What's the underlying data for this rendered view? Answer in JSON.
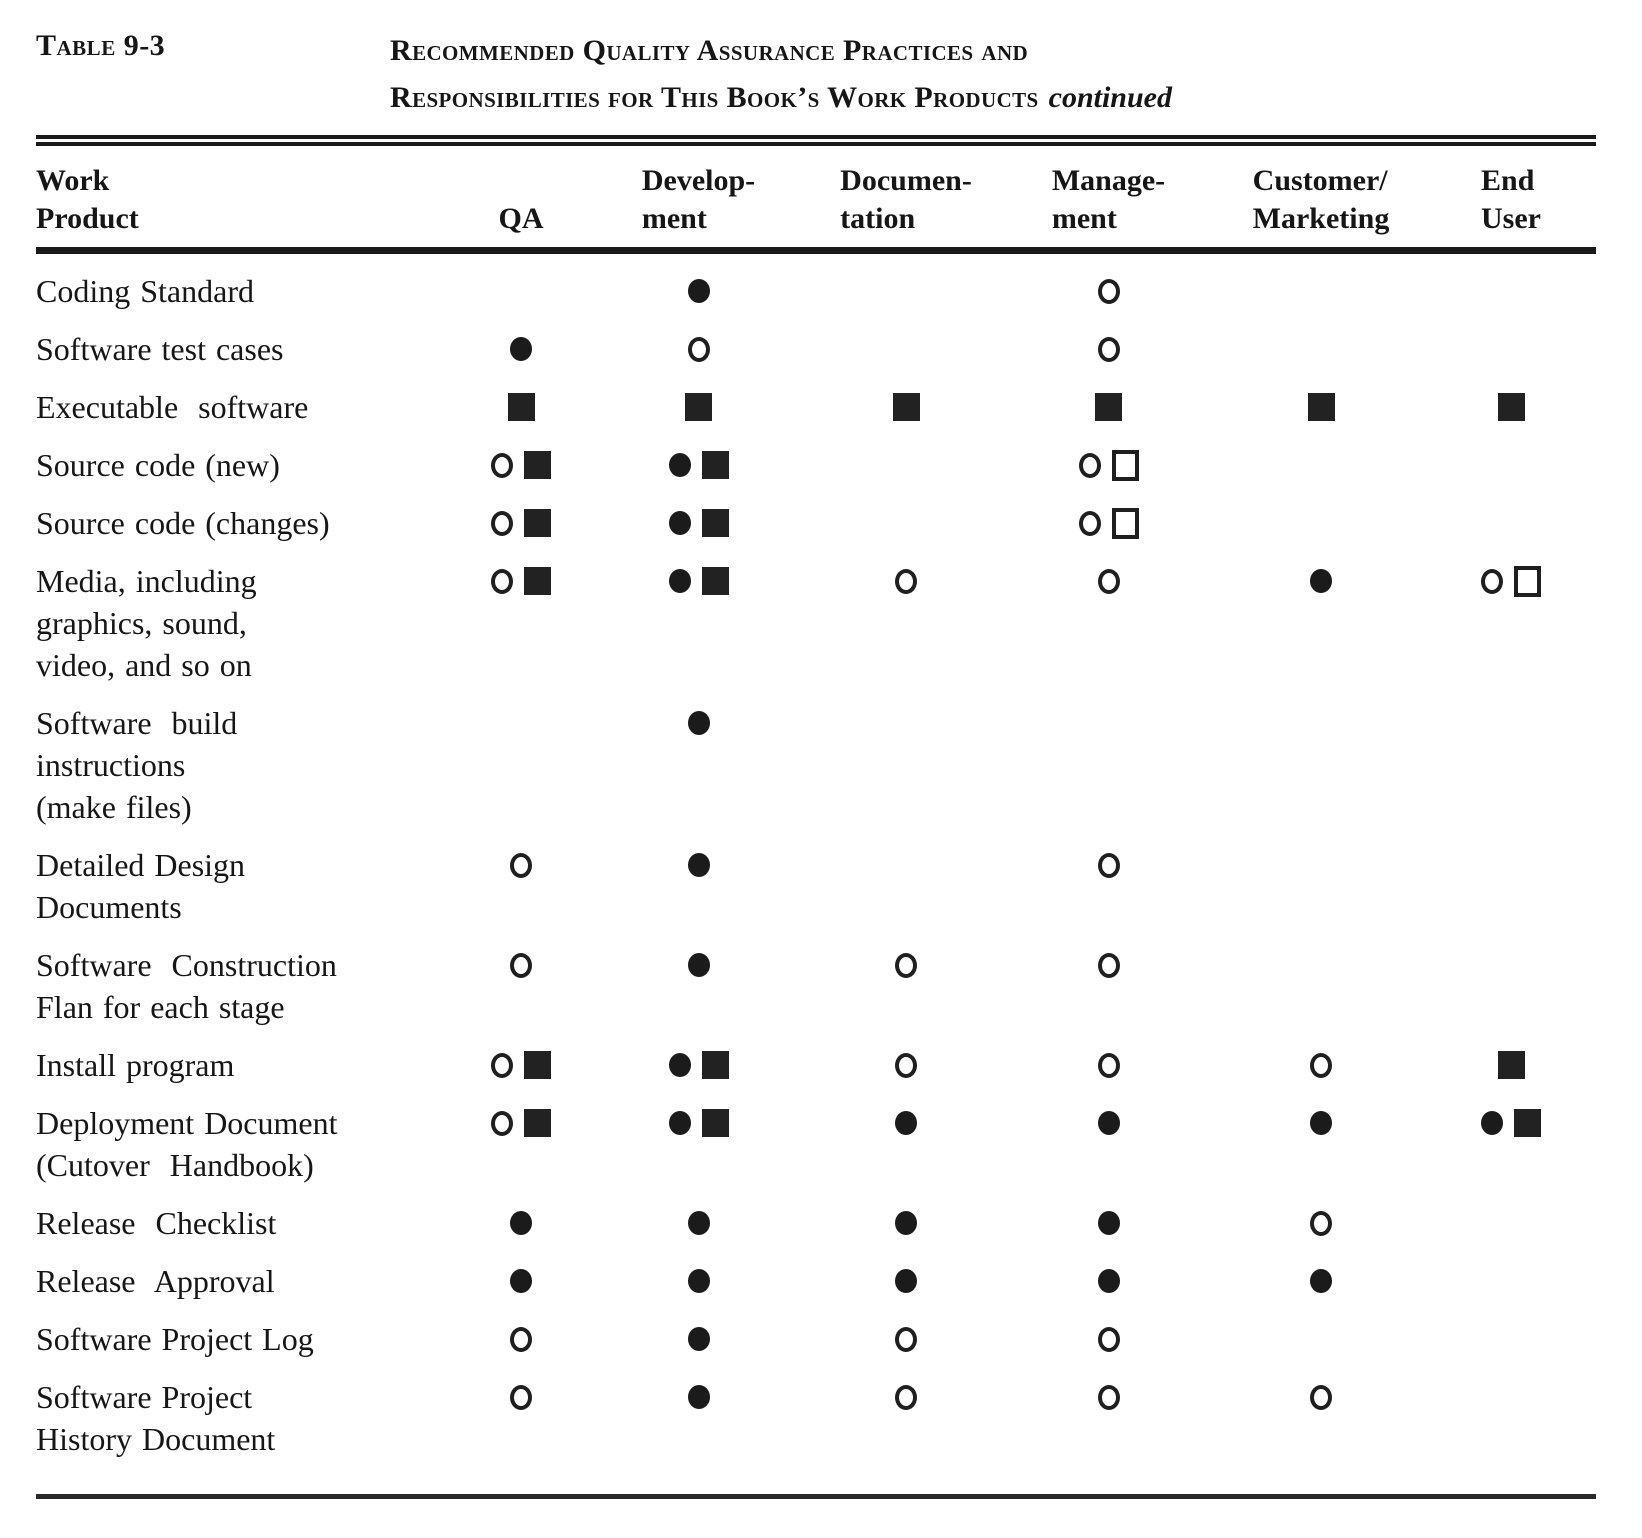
{
  "caption": {
    "label": "Table 9-3",
    "title_line1": "Recommended Quality Assurance Practices and",
    "title_line2": "Responsibilities for This Book’s Work Products",
    "continued": "continued"
  },
  "colors": {
    "ink": "#161616",
    "paper": "#ffffff"
  },
  "marker_glyphs": {
    "filled-circle": "●",
    "open-circle": "○",
    "filled-square": "■",
    "open-square": "□"
  },
  "columns": [
    {
      "id": "work-product",
      "label": "Work\nProduct"
    },
    {
      "id": "qa",
      "label": "QA"
    },
    {
      "id": "development",
      "label": "Develop-\nment"
    },
    {
      "id": "documentation",
      "label": "Documen-\ntation"
    },
    {
      "id": "management",
      "label": "Manage-\nment"
    },
    {
      "id": "customer-marketing",
      "label": "Customer/\nMarketing"
    },
    {
      "id": "end-user",
      "label": "End\nUser"
    }
  ],
  "rows": [
    {
      "label": "Coding Standard",
      "cells": [
        [],
        [
          "filled-circle"
        ],
        [],
        [
          "open-circle"
        ],
        [],
        []
      ]
    },
    {
      "label": "Software test cases",
      "cells": [
        [
          "filled-circle"
        ],
        [
          "open-circle"
        ],
        [],
        [
          "open-circle"
        ],
        [],
        []
      ]
    },
    {
      "label": "Executable  software",
      "cells": [
        [
          "filled-square"
        ],
        [
          "filled-square"
        ],
        [
          "filled-square"
        ],
        [
          "filled-square"
        ],
        [
          "filled-square"
        ],
        [
          "filled-square"
        ]
      ]
    },
    {
      "label": "Source code (new)",
      "cells": [
        [
          "open-circle",
          "filled-square"
        ],
        [
          "filled-circle",
          "filled-square"
        ],
        [],
        [
          "open-circle",
          "open-square"
        ],
        [],
        []
      ]
    },
    {
      "label": "Source code (changes)",
      "cells": [
        [
          "open-circle",
          "filled-square"
        ],
        [
          "filled-circle",
          "filled-square"
        ],
        [],
        [
          "open-circle",
          "open-square"
        ],
        [],
        []
      ]
    },
    {
      "label": "Media, including\ngraphics, sound,\nvideo, and so on",
      "cells": [
        [
          "open-circle",
          "filled-square"
        ],
        [
          "filled-circle",
          "filled-square"
        ],
        [
          "open-circle"
        ],
        [
          "open-circle"
        ],
        [
          "filled-circle"
        ],
        [
          "open-circle",
          "open-square"
        ]
      ]
    },
    {
      "label": "Software  build\ninstructions\n(make files)",
      "cells": [
        [],
        [
          "filled-circle"
        ],
        [],
        [],
        [],
        []
      ]
    },
    {
      "label": "Detailed Design\nDocuments",
      "cells": [
        [
          "open-circle"
        ],
        [
          "filled-circle"
        ],
        [],
        [
          "open-circle"
        ],
        [],
        []
      ]
    },
    {
      "label": "Software  Construction\nFlan for each stage",
      "cells": [
        [
          "open-circle"
        ],
        [
          "filled-circle"
        ],
        [
          "open-circle"
        ],
        [
          "open-circle"
        ],
        [],
        []
      ]
    },
    {
      "label": "Install program",
      "cells": [
        [
          "open-circle",
          "filled-square"
        ],
        [
          "filled-circle",
          "filled-square"
        ],
        [
          "open-circle"
        ],
        [
          "open-circle"
        ],
        [
          "open-circle"
        ],
        [
          "filled-square"
        ]
      ]
    },
    {
      "label": "Deployment Document\n(Cutover  Handbook)",
      "cells": [
        [
          "open-circle",
          "filled-square"
        ],
        [
          "filled-circle",
          "filled-square"
        ],
        [
          "filled-circle"
        ],
        [
          "filled-circle"
        ],
        [
          "filled-circle"
        ],
        [
          "filled-circle",
          "filled-square"
        ]
      ]
    },
    {
      "label": "Release  Checklist",
      "cells": [
        [
          "filled-circle"
        ],
        [
          "filled-circle"
        ],
        [
          "filled-circle"
        ],
        [
          "filled-circle"
        ],
        [
          "open-circle"
        ],
        []
      ]
    },
    {
      "label": "Release  Approval",
      "cells": [
        [
          "filled-circle"
        ],
        [
          "filled-circle"
        ],
        [
          "filled-circle"
        ],
        [
          "filled-circle"
        ],
        [
          "filled-circle"
        ],
        []
      ]
    },
    {
      "label": "Software Project Log",
      "cells": [
        [
          "open-circle"
        ],
        [
          "filled-circle"
        ],
        [
          "open-circle"
        ],
        [
          "open-circle"
        ],
        [],
        []
      ]
    },
    {
      "label": "Software Project\nHistory Document",
      "cells": [
        [
          "open-circle"
        ],
        [
          "filled-circle"
        ],
        [
          "open-circle"
        ],
        [
          "open-circle"
        ],
        [
          "open-circle"
        ],
        []
      ]
    }
  ]
}
